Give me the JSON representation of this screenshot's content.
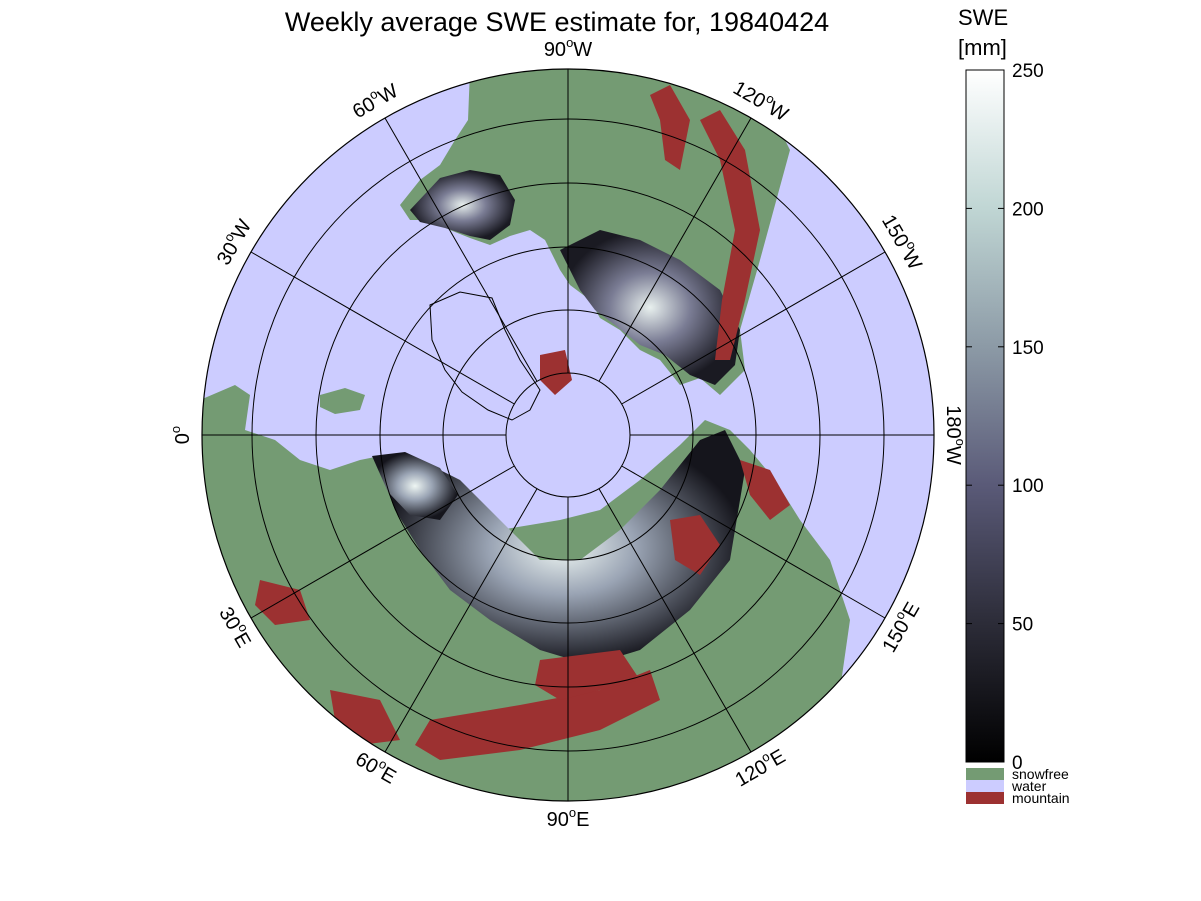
{
  "title": "Weekly average SWE estimate for, 19840424",
  "map": {
    "projection": "north polar stereographic",
    "colors": {
      "water": "#ccccff",
      "snowfree": "#749b73",
      "mountain": "#9c3131",
      "lines": "#000000"
    },
    "longitude_labels": [
      {
        "deg": "90",
        "hem": "W"
      },
      {
        "deg": "120",
        "hem": "W"
      },
      {
        "deg": "150",
        "hem": "W"
      },
      {
        "deg": "180",
        "hem": "W"
      },
      {
        "deg": "150",
        "hem": "E"
      },
      {
        "deg": "120",
        "hem": "E"
      },
      {
        "deg": "90",
        "hem": "E"
      },
      {
        "deg": "60",
        "hem": "E"
      },
      {
        "deg": "30",
        "hem": "E"
      },
      {
        "deg": "0",
        "hem": ""
      },
      {
        "deg": "30",
        "hem": "W"
      },
      {
        "deg": "60",
        "hem": "W"
      }
    ]
  },
  "colorbar": {
    "unit_line1": "SWE",
    "unit_line2": "[mm]",
    "range": [
      0,
      250
    ],
    "ticks": [
      "0",
      "50",
      "100",
      "150",
      "200",
      "250"
    ],
    "gradient": [
      "#000000",
      "#2c2c38",
      "#5a5a78",
      "#8c9aa6",
      "#c0d6d4",
      "#ffffff"
    ]
  },
  "categories": [
    {
      "label": "snowfree",
      "color": "#749b73"
    },
    {
      "label": "water",
      "color": "#ccccff"
    },
    {
      "label": "mountain",
      "color": "#9c3131"
    }
  ]
}
